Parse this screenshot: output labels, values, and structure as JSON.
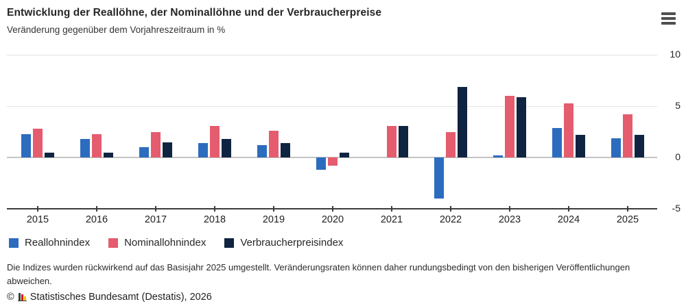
{
  "header": {
    "title": "Entwicklung der Reallöhne, der Nominallöhne und der Verbraucherpreise",
    "subtitle": "Veränderung gegenüber dem Vorjahreszeitraum in %"
  },
  "menu": {
    "icon": "hamburger-menu-icon"
  },
  "chart_data": {
    "type": "bar",
    "title": "Entwicklung der Reallöhne, der Nominallöhne und der Verbraucherpreise",
    "subtitle": "Veränderung gegenüber dem Vorjahreszeitraum in %",
    "categories": [
      "2015",
      "2016",
      "2017",
      "2018",
      "2019",
      "2020",
      "2021",
      "2022",
      "2023",
      "2024",
      "2025"
    ],
    "series": [
      {
        "name": "Reallohnindex",
        "color": "#2c6cbe",
        "values": [
          2.3,
          1.8,
          1.0,
          1.4,
          1.2,
          -1.2,
          0.0,
          -4.0,
          0.2,
          2.9,
          1.9
        ]
      },
      {
        "name": "Nominallohnindex",
        "color": "#e45c6d",
        "values": [
          2.8,
          2.3,
          2.5,
          3.1,
          2.6,
          -0.8,
          3.1,
          2.5,
          6.0,
          5.3,
          4.2
        ]
      },
      {
        "name": "Verbraucherpreisindex",
        "color": "#0f2440",
        "values": [
          0.5,
          0.5,
          1.5,
          1.8,
          1.4,
          0.5,
          3.1,
          6.9,
          5.9,
          2.2,
          2.2
        ]
      }
    ],
    "ylim": [
      -5,
      10
    ],
    "yticks": [
      10,
      5,
      0,
      -5
    ],
    "xlabel": "",
    "ylabel": "",
    "grid": true,
    "legend_position": "bottom"
  },
  "footer": {
    "note": "Die Indizes wurden rückwirkend auf das Basisjahr 2025 umgestellt. Veränderungsraten können daher rundungsbedingt von den bisherigen Veröffentlichungen abweichen.",
    "copyright": "©",
    "source": "Statistisches Bundesamt (Destatis), 2026"
  }
}
